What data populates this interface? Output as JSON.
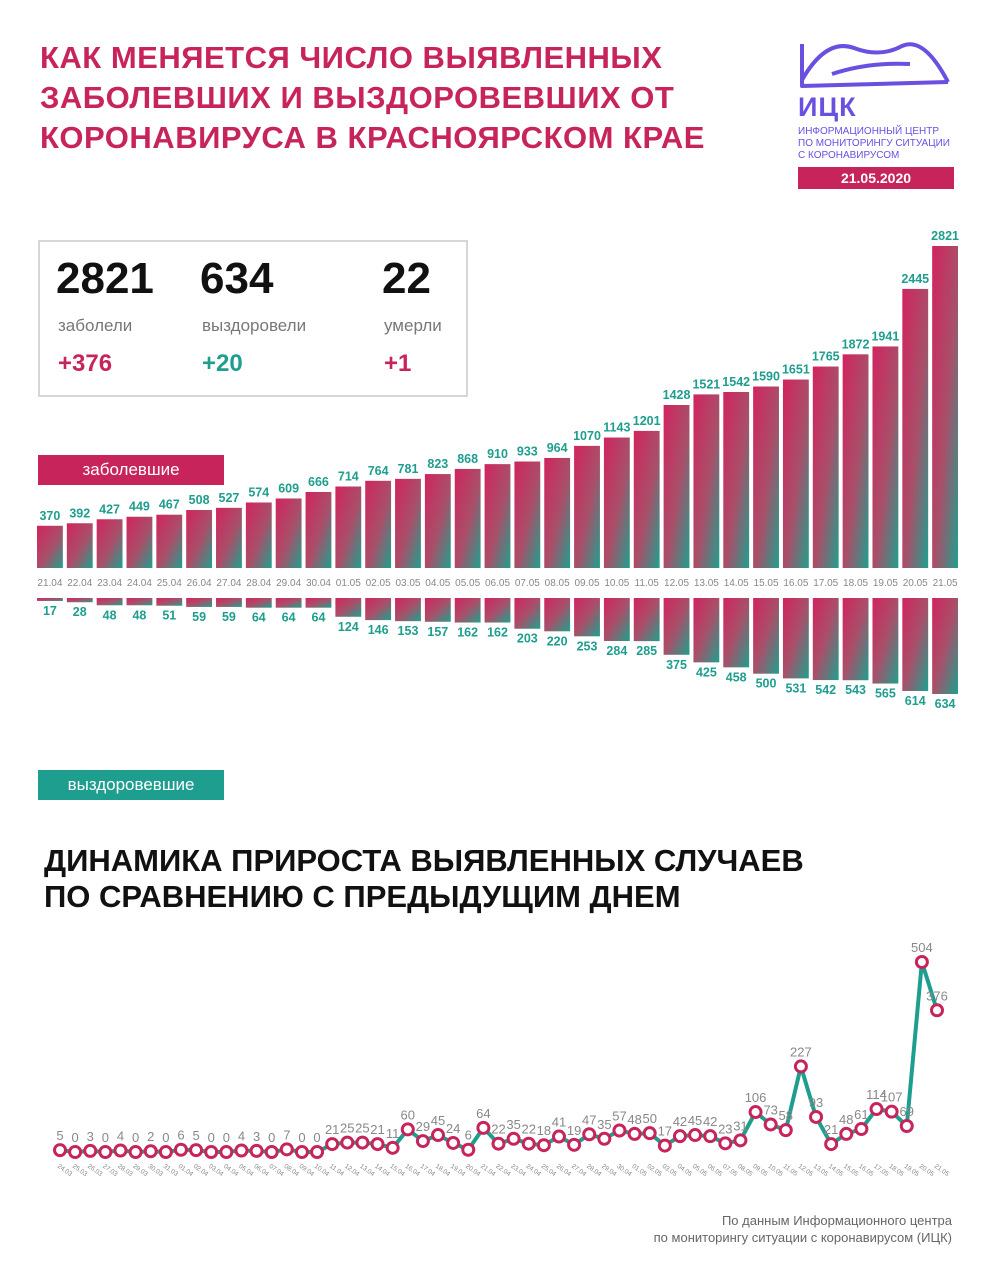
{
  "title": {
    "line1": "КАК МЕНЯЕТСЯ ЧИСЛО ВЫЯВЛЕННЫХ",
    "line2": "ЗАБОЛЕВШИХ И ВЫЗДОРОВЕВШИХ ОТ",
    "line3": "КОРОНАВИРУСА В КРАСНОЯРСКОМ КРАЕ"
  },
  "logo": {
    "name": "ИЦК",
    "sub1": "ИНФОРМАЦИОННЫЙ ЦЕНТР",
    "sub2": "ПО МОНИТОРИНГУ СИТУАЦИИ",
    "sub3": "С КОРОНАВИРУСОМ",
    "date": "21.05.2020"
  },
  "stats": {
    "sick": {
      "value": "2821",
      "label": "заболели",
      "delta": "+376"
    },
    "recovered": {
      "value": "634",
      "label": "выздоровели",
      "delta": "+20"
    },
    "died": {
      "value": "22",
      "label": "умерли",
      "delta": "+1"
    }
  },
  "labels": {
    "sick": "заболевшие",
    "recovered": "выздоровевшие"
  },
  "colors": {
    "magenta": "#c8245c",
    "teal": "#1e9e8e",
    "gray": "#888888"
  },
  "subtitle": {
    "line1": "ДИНАМИКА ПРИРОСТА ВЫЯВЛЕННЫХ СЛУЧАЕВ",
    "line2": "ПО СРАВНЕНИЮ С ПРЕДЫДУЩИМ ДНЕМ"
  },
  "footer": {
    "line1": "По данным Информационного центра",
    "line2": "по мониторингу ситуации с коронавирусом (ИЦК)"
  },
  "chart_data": [
    {
      "type": "bar",
      "categories": [
        "21.04",
        "22.04",
        "23.04",
        "24.04",
        "25.04",
        "26.04",
        "27.04",
        "28.04",
        "29.04",
        "30.04",
        "01.05",
        "02.05",
        "03.05",
        "04.05",
        "05.05",
        "06.05",
        "07.05",
        "08.05",
        "09.05",
        "10.05",
        "11.05",
        "12.05",
        "13.05",
        "14.05",
        "15.05",
        "16.05",
        "17.05",
        "18.05",
        "19.05",
        "20.05",
        "21.05"
      ],
      "series": [
        {
          "name": "заболевшие",
          "values": [
            370,
            392,
            427,
            449,
            467,
            508,
            527,
            574,
            609,
            666,
            714,
            764,
            781,
            823,
            868,
            910,
            933,
            964,
            1070,
            1143,
            1201,
            1428,
            1521,
            1542,
            1590,
            1651,
            1765,
            1872,
            1941,
            2445,
            2821
          ]
        },
        {
          "name": "выздоровевшие",
          "values": [
            17,
            28,
            48,
            48,
            51,
            59,
            59,
            64,
            64,
            64,
            124,
            146,
            153,
            157,
            162,
            162,
            203,
            220,
            253,
            284,
            285,
            375,
            425,
            458,
            500,
            531,
            542,
            543,
            565,
            614,
            634
          ]
        }
      ]
    },
    {
      "type": "line",
      "title": "ДИНАМИКА ПРИРОСТА ВЫЯВЛЕННЫХ СЛУЧАЕВ ПО СРАВНЕНИЮ С ПРЕДЫДУЩИМ ДНЕМ",
      "x": [
        "24.03",
        "25.03",
        "26.03",
        "27.03",
        "28.03",
        "29.03",
        "30.03",
        "31.03",
        "01.04",
        "02.04",
        "03.04",
        "04.04",
        "05.04",
        "06.04",
        "07.04",
        "08.04",
        "09.04",
        "10.04",
        "11.04",
        "12.04",
        "13.04",
        "14.04",
        "15.04",
        "16.04",
        "17.04",
        "18.04",
        "19.04",
        "20.04",
        "21.04",
        "22.04",
        "23.04",
        "24.04",
        "25.04",
        "26.04",
        "27.04",
        "28.04",
        "29.04",
        "30.04",
        "01.05",
        "02.05",
        "03.05",
        "04.05",
        "05.05",
        "06.05",
        "07.05",
        "08.05",
        "09.05",
        "10.05",
        "11.05",
        "12.05",
        "13.05",
        "14.05",
        "15.05",
        "16.05",
        "17.05",
        "18.05",
        "19.05",
        "20.05",
        "21.05"
      ],
      "values": [
        5,
        0,
        3,
        0,
        4,
        0,
        2,
        0,
        6,
        5,
        0,
        0,
        4,
        3,
        0,
        7,
        0,
        0,
        21,
        25,
        25,
        21,
        11,
        60,
        29,
        45,
        24,
        6,
        64,
        22,
        35,
        22,
        18,
        41,
        19,
        47,
        35,
        57,
        48,
        50,
        17,
        42,
        45,
        42,
        23,
        31,
        106,
        73,
        58,
        227,
        93,
        21,
        48,
        61,
        114,
        107,
        69,
        504,
        376
      ]
    }
  ]
}
